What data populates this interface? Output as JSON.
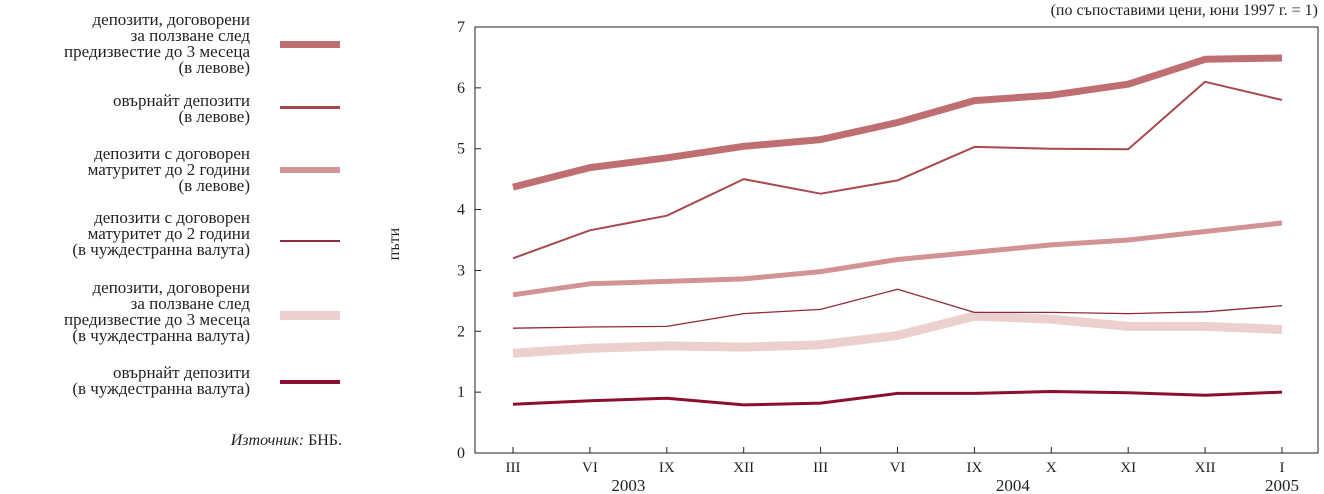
{
  "legend": {
    "items": [
      {
        "label": "депозити, договорени\nза ползване след\nпредизвестие до 3 месеца\n(в левове)",
        "color": "#bf6f72"
      },
      {
        "label": "овърнайт депозити\n(в левове)",
        "color": "#a8484f"
      },
      {
        "label": "депозити с договорен\nматуритет до 2 години\n(в левове)",
        "color": "#d39294"
      },
      {
        "label": "депозити с договорен\nматуритет до 2 години\n(в чуждестранна валута)",
        "color": "#8e2c3c"
      },
      {
        "label": "депозити, договорени\nза ползване след\nпредизвестие до 3 месеца\n(в чуждестранна валута)",
        "color": "#ecd0cd"
      },
      {
        "label": "овърнайт депозити\n(в чуждестранна валута)",
        "color": "#8c0f30"
      }
    ]
  },
  "source": {
    "prefix": "Източник:",
    "text": " БНБ."
  },
  "chart_data": {
    "type": "line",
    "note": "(по съпоставими цени, юни 1997 г. = 1)",
    "ylabel": "пъти",
    "xlabel": "",
    "ylim": [
      0,
      7
    ],
    "yticks": [
      0,
      1,
      2,
      3,
      4,
      5,
      6,
      7
    ],
    "categories": [
      "III",
      "VI",
      "IX",
      "XII",
      "III",
      "VI",
      "IX",
      "X",
      "XI",
      "XII",
      "I"
    ],
    "years": [
      {
        "label": "2003",
        "from": 0,
        "to": 3
      },
      {
        "label": "2004",
        "from": 4,
        "to": 9
      },
      {
        "label": "2005",
        "from": 10,
        "to": 10
      }
    ],
    "grid": false,
    "series": [
      {
        "name": "депозити, договорени за ползване след предизвестие до 3 месеца (в левове)",
        "values": [
          4.37,
          4.69,
          4.85,
          5.04,
          5.15,
          5.43,
          5.79,
          5.88,
          6.06,
          6.47,
          6.49
        ],
        "color": "#bf6f72"
      },
      {
        "name": "овърнайт депозити (в левове)",
        "values": [
          3.2,
          3.66,
          3.9,
          4.5,
          4.26,
          4.48,
          5.03,
          5.0,
          4.99,
          6.1,
          5.8
        ],
        "color": "#a8484f"
      },
      {
        "name": "депозити с договорен матуритет до 2 години (в левове)",
        "values": [
          2.6,
          2.78,
          2.82,
          2.86,
          2.98,
          3.18,
          3.3,
          3.42,
          3.5,
          3.64,
          3.78
        ],
        "color": "#d39294"
      },
      {
        "name": "депозити с договорен матуритет до 2 години (в чуждестранна валута)",
        "values": [
          2.05,
          2.07,
          2.08,
          2.29,
          2.36,
          2.69,
          2.31,
          2.31,
          2.29,
          2.32,
          2.42
        ],
        "color": "#8e2c3c"
      },
      {
        "name": "депозити, договорени за ползване след предизвестие до 3 месеца (в чуждестранна валута)",
        "values": [
          1.64,
          1.72,
          1.76,
          1.74,
          1.78,
          1.93,
          2.25,
          2.2,
          2.08,
          2.08,
          2.03
        ],
        "color": "#ecd0cd"
      },
      {
        "name": "овърнайт депозити (в чуждестранна валута)",
        "values": [
          0.8,
          0.86,
          0.9,
          0.79,
          0.82,
          0.98,
          0.98,
          1.01,
          0.99,
          0.95,
          1.0
        ],
        "color": "#8c0f30"
      }
    ]
  }
}
